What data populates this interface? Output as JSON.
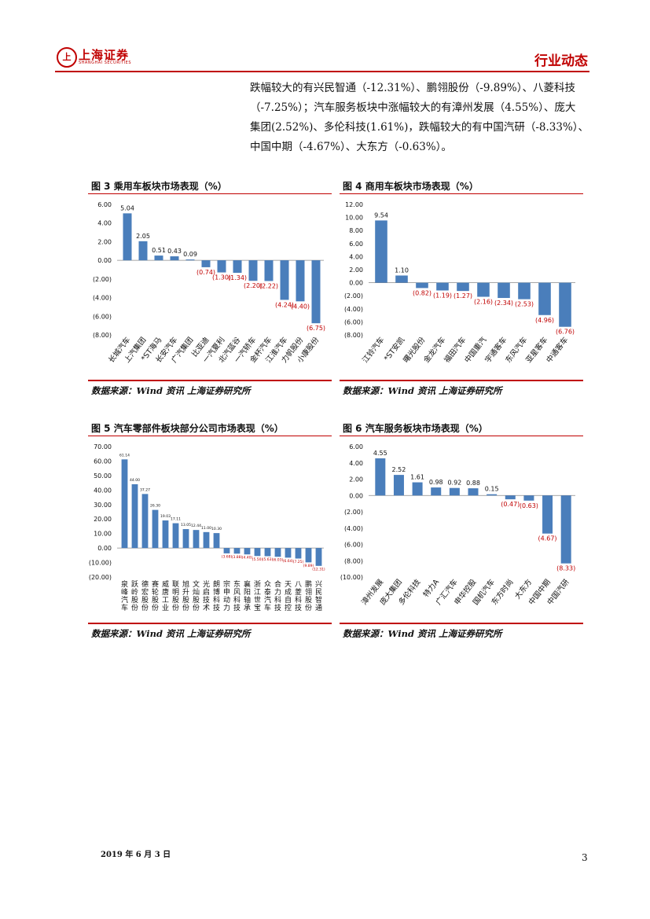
{
  "header": {
    "logo_icon": "上",
    "logo_cn": "上海证券",
    "logo_en": "SHANGHAI SECURITIES",
    "section_title": "行业动态"
  },
  "body_text": [
    "跌幅较大的有兴民智通（-12.31%）、鹏翎股份（-9.89%）、八菱科技",
    "（-7.25%）；汽车服务板块中涨幅较大的有漳州发展（4.55%）、庞大",
    "集团(2.52%)、多伦科技(1.61%)，跌幅较大的有中国汽研（-8.33%）、",
    "中国中期（-4.67%）、大东方（-0.63%）。"
  ],
  "colors": {
    "bar": "#4a7ebb",
    "neg_label": "#c00000",
    "accent": "#c00000"
  },
  "figures": [
    {
      "title": "图 3 乘用车板块市场表现（%）",
      "source": "数据来源：Wind 资讯 上海证券研究所"
    },
    {
      "title": "图 4 商用车板块市场表现（%）",
      "source": "数据来源：Wind 资讯 上海证券研究所"
    },
    {
      "title": "图 5 汽车零部件板块部分公司市场表现（%）",
      "source": "数据来源：Wind 资讯 上海证券研究所"
    },
    {
      "title": "图 6 汽车服务板块市场表现（%）",
      "source": "数据来源：Wind 资讯 上海证券研究所"
    }
  ],
  "chart_data": [
    {
      "type": "bar",
      "title": "图 3 乘用车板块市场表现（%）",
      "categories": [
        "长城汽车",
        "上汽集团",
        "*ST海马",
        "长安汽车",
        "广汽集团",
        "比亚迪",
        "一汽夏利",
        "北汽蓝谷",
        "一汽轿车",
        "金杯汽车",
        "江淮汽车",
        "力帆股份",
        "小康股份"
      ],
      "values": [
        5.04,
        2.05,
        0.51,
        0.43,
        0.09,
        -0.74,
        -1.3,
        -1.34,
        -2.2,
        -2.22,
        -4.24,
        -4.4,
        -6.75
      ],
      "labels": [
        "5.04",
        "2.05",
        "0.51",
        "0.43",
        "0.09",
        "(0.74)",
        "(1.30)",
        "(1.34)",
        "(2.20)",
        "(2.22)",
        "(4.24)",
        "(4.40)",
        "(6.75)"
      ],
      "ylim": [
        -8,
        6
      ],
      "yticks": [
        6,
        4,
        2,
        0,
        -2,
        -4,
        -6,
        -8
      ],
      "ytick_labels": [
        "6.00",
        "4.00",
        "2.00",
        "0.00",
        "(2.00)",
        "(4.00)",
        "(6.00)",
        "(8.00)"
      ]
    },
    {
      "type": "bar",
      "title": "图 4 商用车板块市场表现（%）",
      "categories": [
        "江铃汽车",
        "*ST安凯",
        "曙光股份",
        "金龙汽车",
        "福田汽车",
        "中国重汽",
        "宇通客车",
        "东风汽车",
        "亚星客车",
        "中通客车"
      ],
      "values": [
        9.54,
        1.1,
        -0.82,
        -1.19,
        -1.27,
        -2.16,
        -2.34,
        -2.53,
        -4.96,
        -6.76
      ],
      "labels": [
        "9.54",
        "1.10",
        "(0.82)",
        "(1.19)",
        "(1.27)",
        "(2.16)",
        "(2.34)",
        "(2.53)",
        "(4.96)",
        "(6.76)"
      ],
      "ylim": [
        -8,
        12
      ],
      "yticks": [
        12,
        10,
        8,
        6,
        4,
        2,
        0,
        -2,
        -4,
        -6,
        -8
      ],
      "ytick_labels": [
        "12.00",
        "10.00",
        "8.00",
        "6.00",
        "4.00",
        "2.00",
        "0.00",
        "(2.00)",
        "(4.00)",
        "(6.00)",
        "(8.00)"
      ]
    },
    {
      "type": "bar",
      "title": "图 5 汽车零部件板块部分公司市场表现（%）",
      "categories": [
        "泉峰汽车",
        "跃岭股份",
        "德宏股份",
        "赛轮股份",
        "威唐工业",
        "联明股份",
        "旭升股份",
        "文灿股份",
        "光启技术",
        "朗博科技",
        "宗申动力",
        "东风科技",
        "襄阳轴承",
        "浙江世宝",
        "众泰汽车",
        "合力科技",
        "天成自控",
        "八菱科技",
        "鹏翎股份",
        "兴民智通"
      ],
      "values": [
        61.14,
        44.0,
        37.27,
        26.3,
        19.03,
        17.11,
        13.05,
        12.44,
        11.0,
        10.3,
        -3.68,
        -3.88,
        -4.4,
        -5.5,
        -5.63,
        -6.03,
        -6.64,
        -7.25,
        -9.89,
        -12.31
      ],
      "labels": [
        "61.14",
        "44.00",
        "37.27",
        "26.30",
        "19.03",
        "17.11",
        "13.05",
        "12.44",
        "11.00",
        "10.30",
        "(3.68)",
        "(3.88)",
        "(4.40)",
        "(5.50)",
        "(5.63)",
        "(6.03)",
        "(6.64)",
        "(7.25)",
        "(9.89)",
        "(12.31)"
      ],
      "ylim": [
        -20,
        70
      ],
      "yticks": [
        70,
        60,
        50,
        40,
        30,
        20,
        10,
        0,
        -10,
        -20
      ],
      "ytick_labels": [
        "70.00",
        "60.00",
        "50.00",
        "40.00",
        "30.00",
        "20.00",
        "10.00",
        "0.00",
        "(10.00)",
        "(20.00)"
      ]
    },
    {
      "type": "bar",
      "title": "图 6 汽车服务板块市场表现（%）",
      "categories": [
        "漳州发展",
        "庞大集团",
        "多伦科技",
        "特力A",
        "广汇汽车",
        "申华控股",
        "国机汽车",
        "东方时尚",
        "大东方",
        "中国中期",
        "中国汽研"
      ],
      "values": [
        4.55,
        2.52,
        1.61,
        0.98,
        0.92,
        0.88,
        0.15,
        -0.47,
        -0.63,
        -4.67,
        -8.33
      ],
      "labels": [
        "4.55",
        "2.52",
        "1.61",
        "0.98",
        "0.92",
        "0.88",
        "0.15",
        "(0.47)",
        "(0.63)",
        "(4.67)",
        "(8.33)"
      ],
      "ylim": [
        -10,
        6
      ],
      "yticks": [
        6,
        4,
        2,
        0,
        -2,
        -4,
        -6,
        -8,
        -10
      ],
      "ytick_labels": [
        "6.00",
        "4.00",
        "2.00",
        "0.00",
        "(2.00)",
        "(4.00)",
        "(6.00)",
        "(8.00)",
        "(10.00)"
      ]
    }
  ],
  "footer": {
    "date": "2019 年 6 月 3 日",
    "page": "3"
  }
}
